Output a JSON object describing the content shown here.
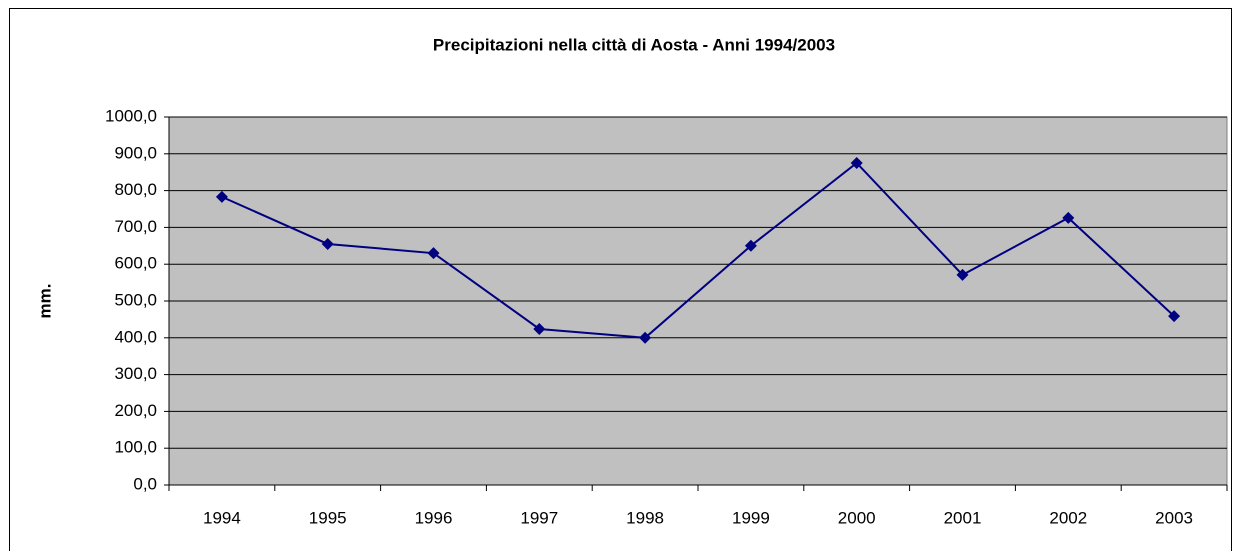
{
  "chart_data": {
    "type": "line",
    "title": "Precipitazioni nella città di Aosta - Anni 1994/2003",
    "y_label": "mm.",
    "categories": [
      "1994",
      "1995",
      "1996",
      "1997",
      "1998",
      "1999",
      "2000",
      "2001",
      "2002",
      "2003"
    ],
    "series": [
      {
        "name": "Precipitazioni",
        "color": "#000080",
        "values": [
          783,
          655,
          630,
          424,
          400,
          650,
          875,
          571,
          726,
          459
        ]
      }
    ],
    "ylim": [
      0,
      1000
    ],
    "yticks": [
      {
        "value": 0,
        "label": "0,0"
      },
      {
        "value": 100,
        "label": "100,0"
      },
      {
        "value": 200,
        "label": "200,0"
      },
      {
        "value": 300,
        "label": "300,0"
      },
      {
        "value": 400,
        "label": "400,0"
      },
      {
        "value": 500,
        "label": "500,0"
      },
      {
        "value": 600,
        "label": "600,0"
      },
      {
        "value": 700,
        "label": "700,0"
      },
      {
        "value": 800,
        "label": "800,0"
      },
      {
        "value": 900,
        "label": "900,0"
      },
      {
        "value": 1000,
        "label": "1000,0"
      }
    ],
    "grid": true
  }
}
